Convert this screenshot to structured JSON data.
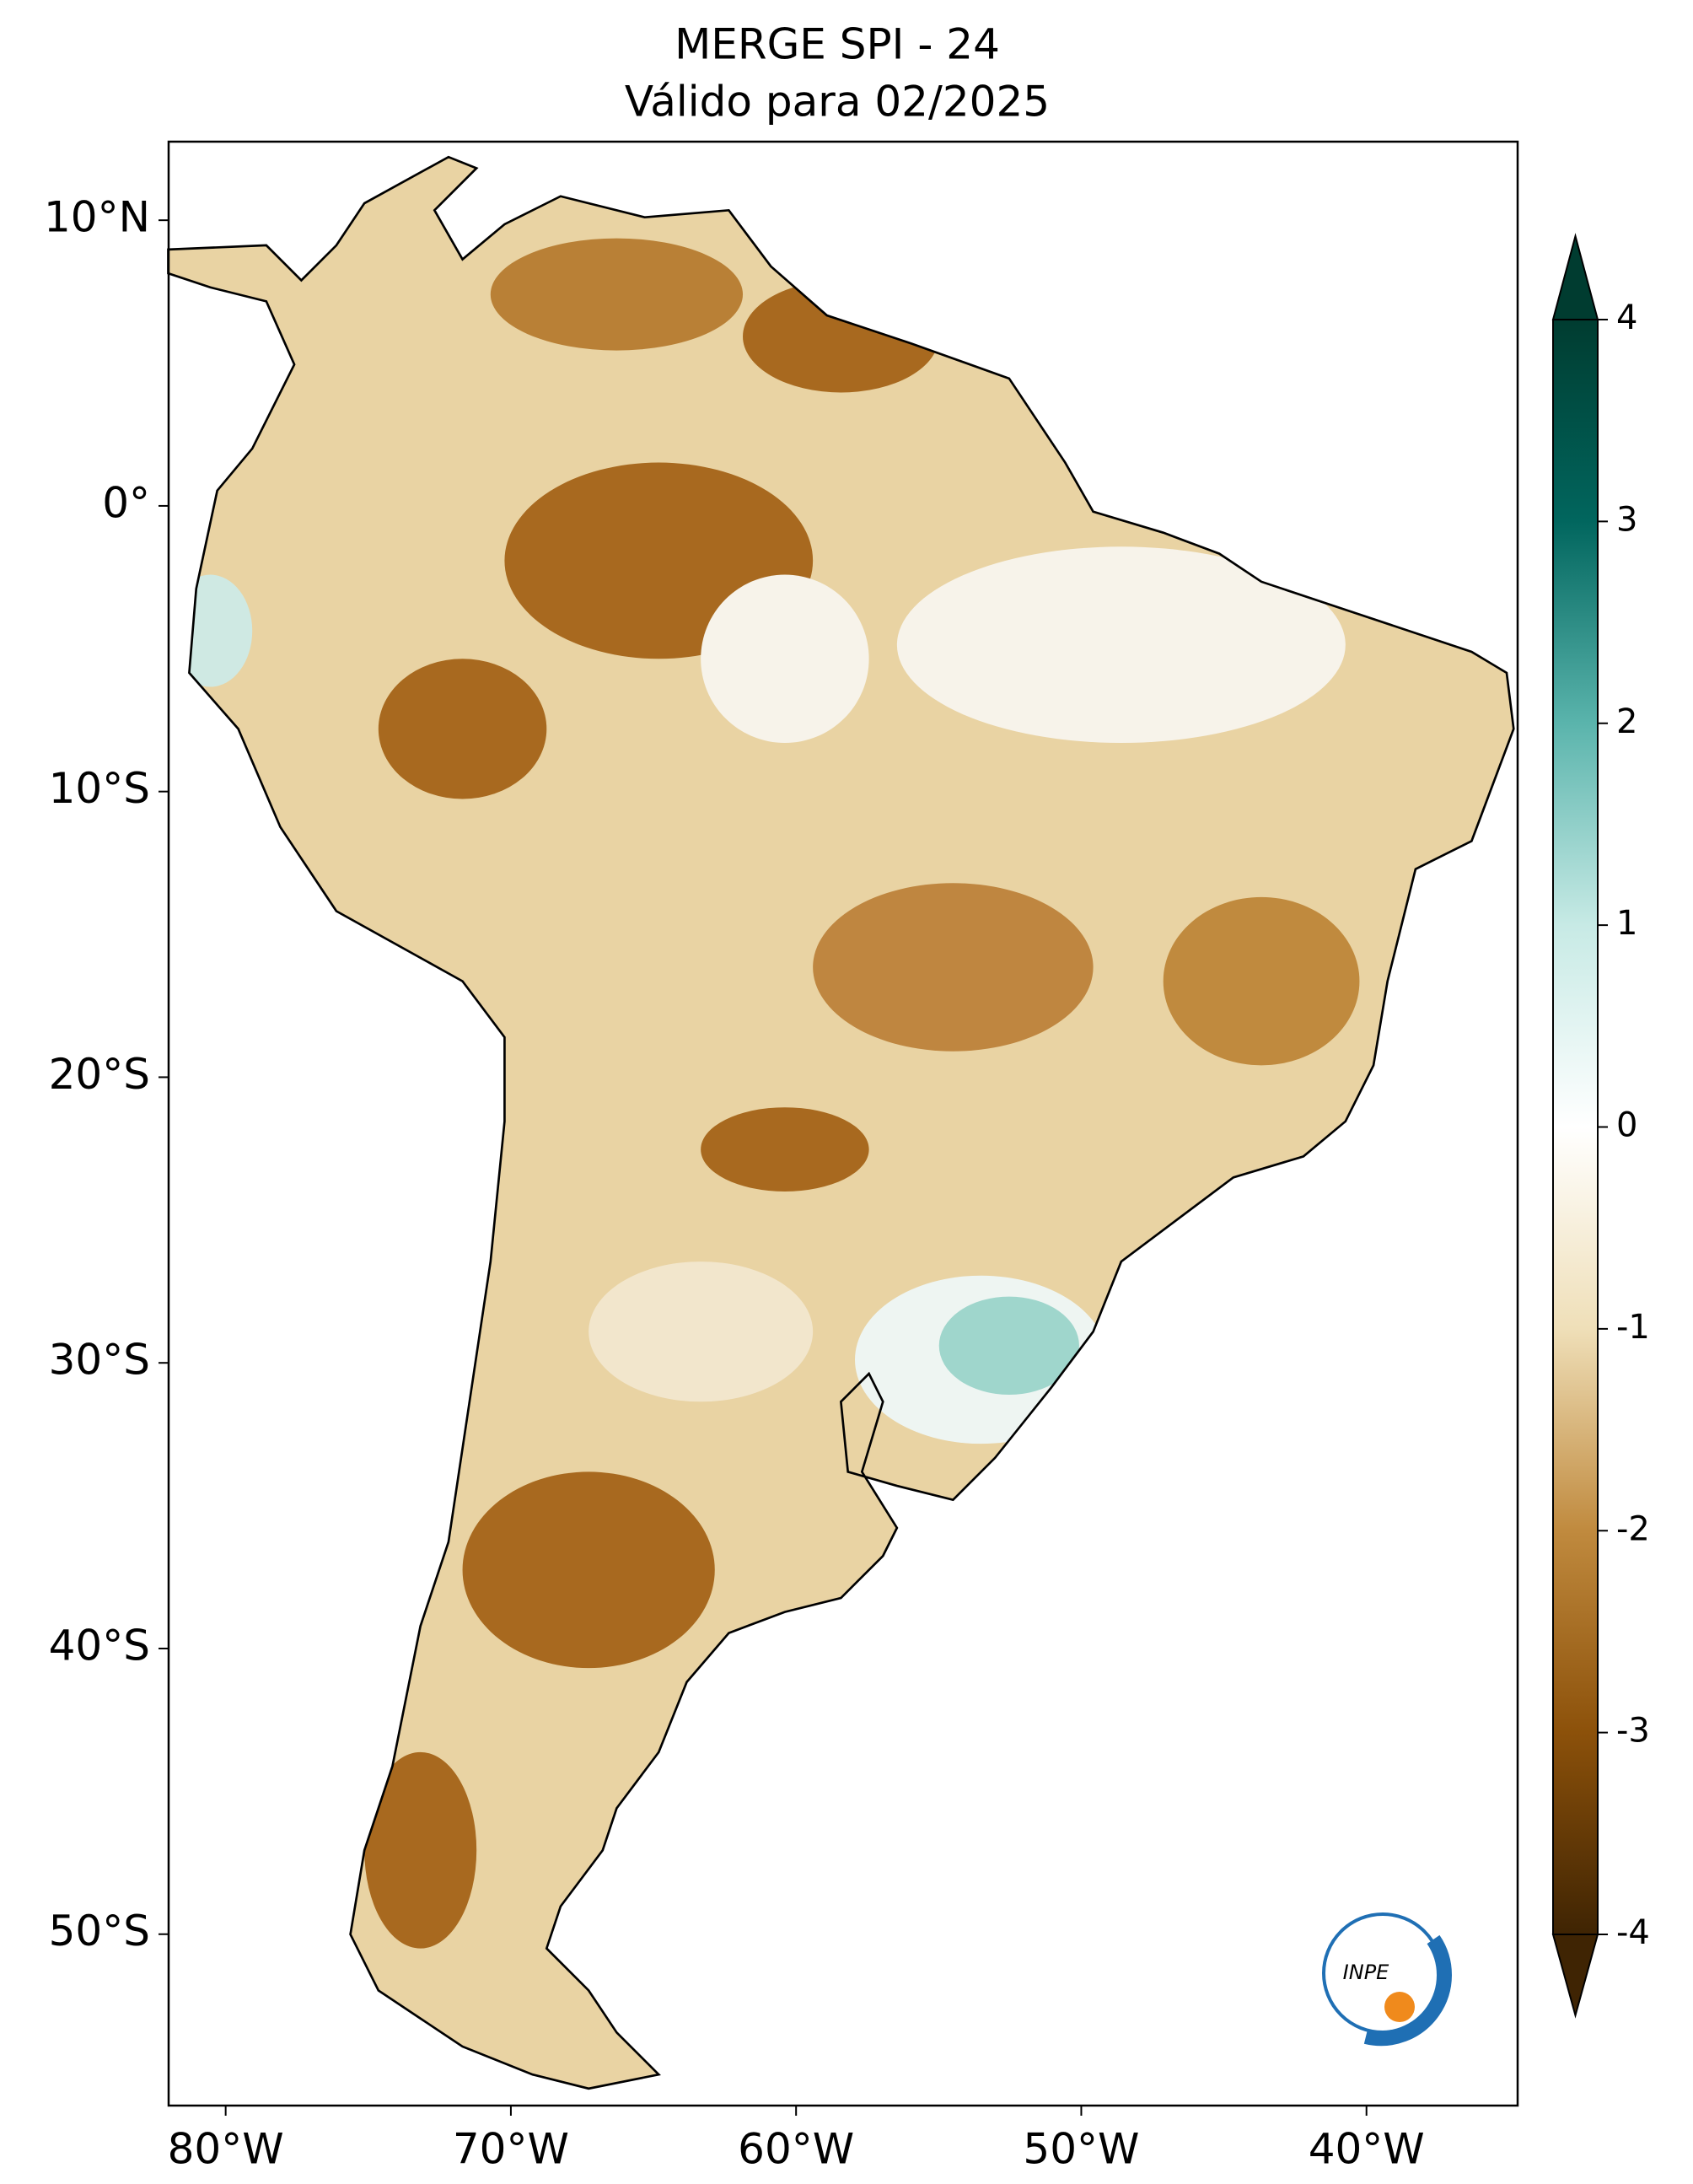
{
  "header": {
    "title": "MERGE   SPI - 24",
    "subtitle": "Válido para 02/2025"
  },
  "map": {
    "xlim": [
      -82,
      -34.7
    ],
    "ylim": [
      -56,
      12.75
    ],
    "xticks": [
      {
        "value": -80,
        "label": "80°W"
      },
      {
        "value": -70,
        "label": "70°W"
      },
      {
        "value": -60,
        "label": "60°W"
      },
      {
        "value": -50,
        "label": "50°W"
      },
      {
        "value": -40,
        "label": "40°W"
      }
    ],
    "yticks": [
      {
        "value": 10,
        "label": "10°N"
      },
      {
        "value": 0,
        "label": "0°"
      },
      {
        "value": -10,
        "label": "10°S"
      },
      {
        "value": -20,
        "label": "20°S"
      },
      {
        "value": -30,
        "label": "30°S"
      },
      {
        "value": -40,
        "label": "40°S"
      },
      {
        "value": -50,
        "label": "50°S"
      }
    ]
  },
  "colorbar": {
    "lim": [
      -4,
      4
    ],
    "ticks": [
      -4,
      -3,
      -2,
      -1,
      0,
      1,
      2,
      3,
      4
    ],
    "colors": [
      "#3f2403",
      "#8c510a",
      "#c08a3e",
      "#efdfb8",
      "#ffffff",
      "#c7eae5",
      "#5ab4ac",
      "#01665e",
      "#003c30"
    ]
  },
  "logo": "INPE"
}
